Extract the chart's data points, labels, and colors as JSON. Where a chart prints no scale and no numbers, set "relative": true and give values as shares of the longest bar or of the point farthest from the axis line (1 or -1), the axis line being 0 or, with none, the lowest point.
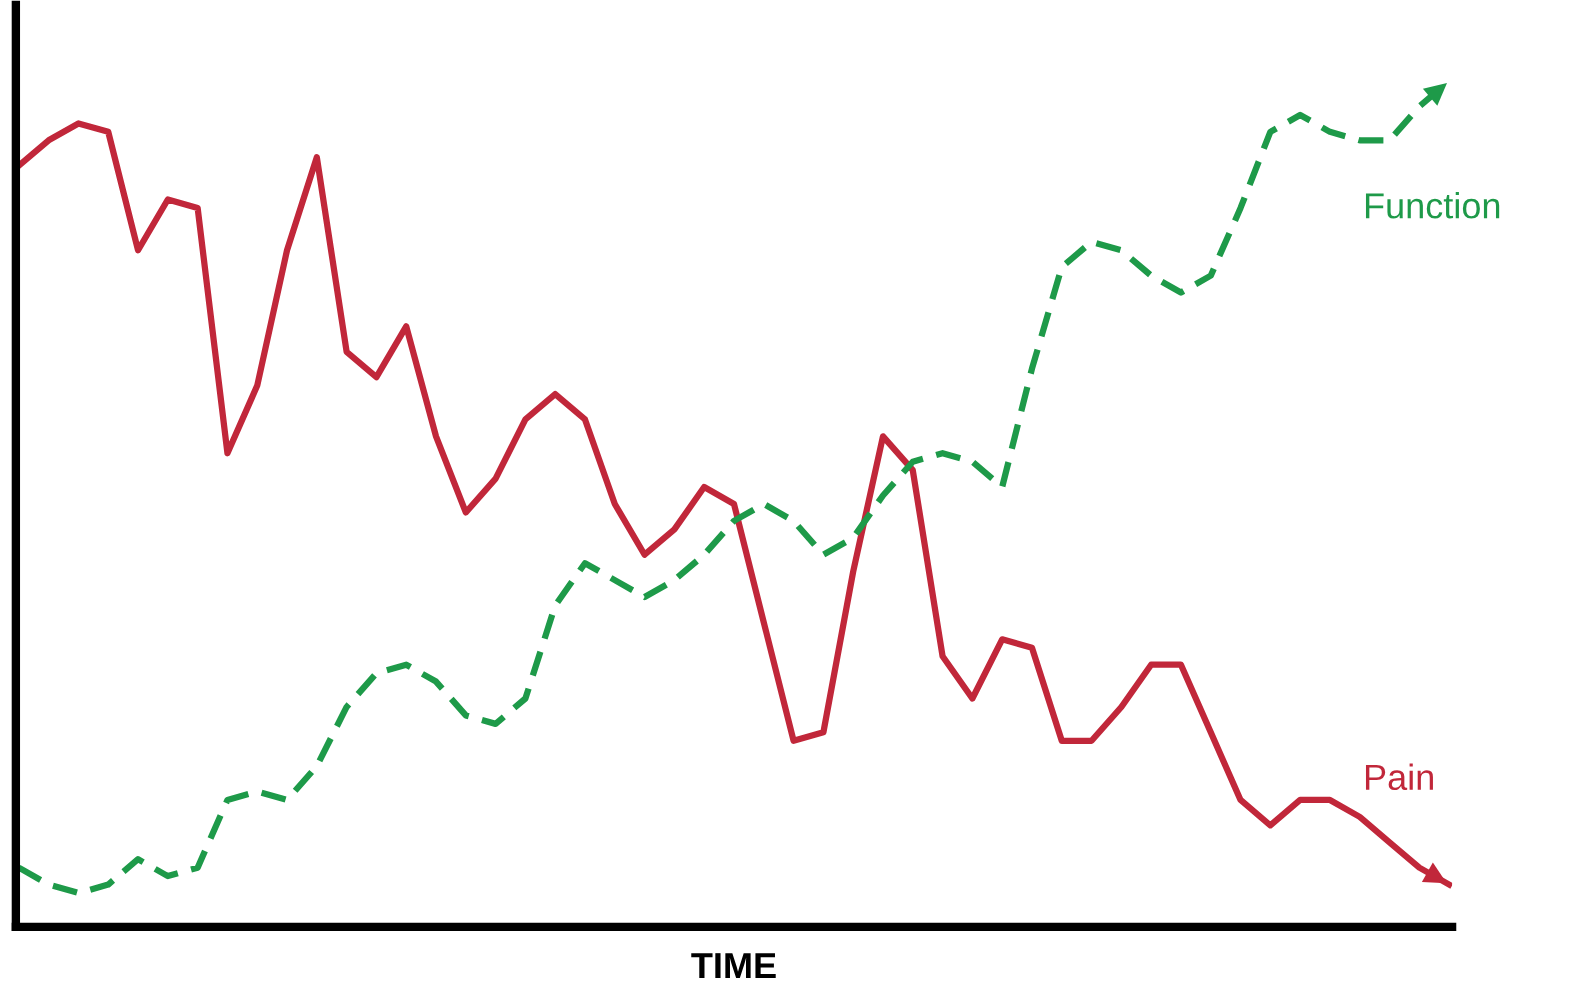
{
  "chart_data": {
    "type": "line",
    "relative": true,
    "xlabel": "TIME",
    "categories": [
      null,
      null,
      null,
      null,
      null,
      null,
      null,
      null,
      null,
      null,
      null,
      null,
      null,
      null,
      null,
      null,
      null,
      null,
      null,
      null,
      null,
      null,
      null,
      null,
      null,
      null,
      null,
      null,
      null,
      null,
      null,
      null,
      null,
      null,
      null,
      null,
      null,
      null,
      null,
      null,
      null,
      null,
      null,
      null,
      null,
      null,
      null,
      null,
      null
    ],
    "series": [
      {
        "name": "Pain",
        "color": "#c1273a",
        "line_style": "solid",
        "values": [
          0.9,
          0.93,
          0.95,
          0.94,
          0.8,
          0.86,
          0.85,
          0.56,
          0.64,
          0.8,
          0.91,
          0.68,
          0.65,
          0.71,
          0.58,
          0.49,
          0.53,
          0.6,
          0.63,
          0.6,
          0.5,
          0.44,
          0.47,
          0.52,
          0.5,
          0.36,
          0.22,
          0.23,
          0.42,
          0.58,
          0.54,
          0.32,
          0.27,
          0.34,
          0.33,
          0.22,
          0.22,
          0.26,
          0.31,
          0.31,
          0.23,
          0.15,
          0.12,
          0.15,
          0.15,
          0.13,
          0.1,
          0.07,
          0.05
        ]
      },
      {
        "name": "Function",
        "color": "#1e9a49",
        "line_style": "dashed",
        "values": [
          0.07,
          0.05,
          0.04,
          0.05,
          0.08,
          0.06,
          0.07,
          0.15,
          0.16,
          0.15,
          0.19,
          0.26,
          0.3,
          0.31,
          0.29,
          0.25,
          0.24,
          0.27,
          0.38,
          0.43,
          0.41,
          0.39,
          0.41,
          0.44,
          0.48,
          0.5,
          0.48,
          0.44,
          0.46,
          0.51,
          0.55,
          0.56,
          0.55,
          0.52,
          0.66,
          0.78,
          0.81,
          0.8,
          0.77,
          0.75,
          0.77,
          0.85,
          0.94,
          0.96,
          0.94,
          0.93,
          0.93,
          0.97,
          1.0
        ]
      }
    ]
  }
}
